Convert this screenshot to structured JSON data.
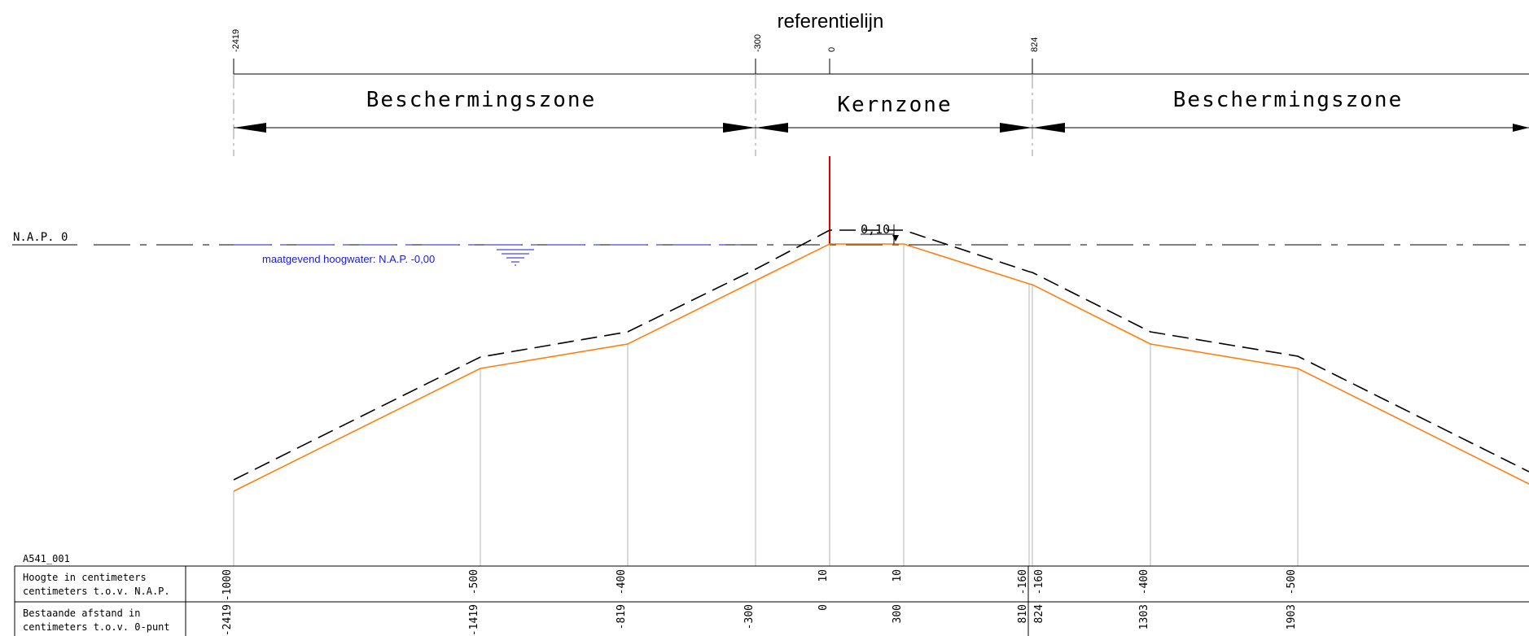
{
  "title": "referentielijn",
  "top_markers": [
    "-2419",
    "-300",
    "0",
    "824"
  ],
  "zones": [
    {
      "label": "Beschermingszone"
    },
    {
      "label": "Kernzone"
    },
    {
      "label": "Beschermingszone"
    }
  ],
  "nap_label": "N.A.P. 0",
  "water_label": "maatgevend hoogwater: N.A.P. -0,00",
  "dimension_label": "0,10",
  "profile_id": "A541_001",
  "table": {
    "row1_label_line1": "Hoogte in centimeters",
    "row1_label_line2": "centimeters t.o.v. N.A.P.",
    "row2_label_line1": "Bestaande afstand in",
    "row2_label_line2": "centimeters t.o.v. 0-punt"
  },
  "profile_points": [
    {
      "afstand": "-2419",
      "hoogte": "-1000"
    },
    {
      "afstand": "-1419",
      "hoogte": "-500"
    },
    {
      "afstand": "-819",
      "hoogte": "-400"
    },
    {
      "afstand": "-300",
      "hoogte": ""
    },
    {
      "afstand": "0",
      "hoogte": "10"
    },
    {
      "afstand": "300",
      "hoogte": "10"
    },
    {
      "afstand": "810",
      "hoogte": "-160"
    },
    {
      "afstand": "824",
      "hoogte": "-160"
    },
    {
      "afstand": "1303",
      "hoogte": "-400"
    },
    {
      "afstand": "1903",
      "hoogte": "-500"
    }
  ],
  "colors": {
    "existing_profile": "#ff7f0e",
    "design_profile": "#000000",
    "reference_line": "#e00000",
    "water": "#1a1ad6",
    "grid": "#b4b4b4"
  }
}
